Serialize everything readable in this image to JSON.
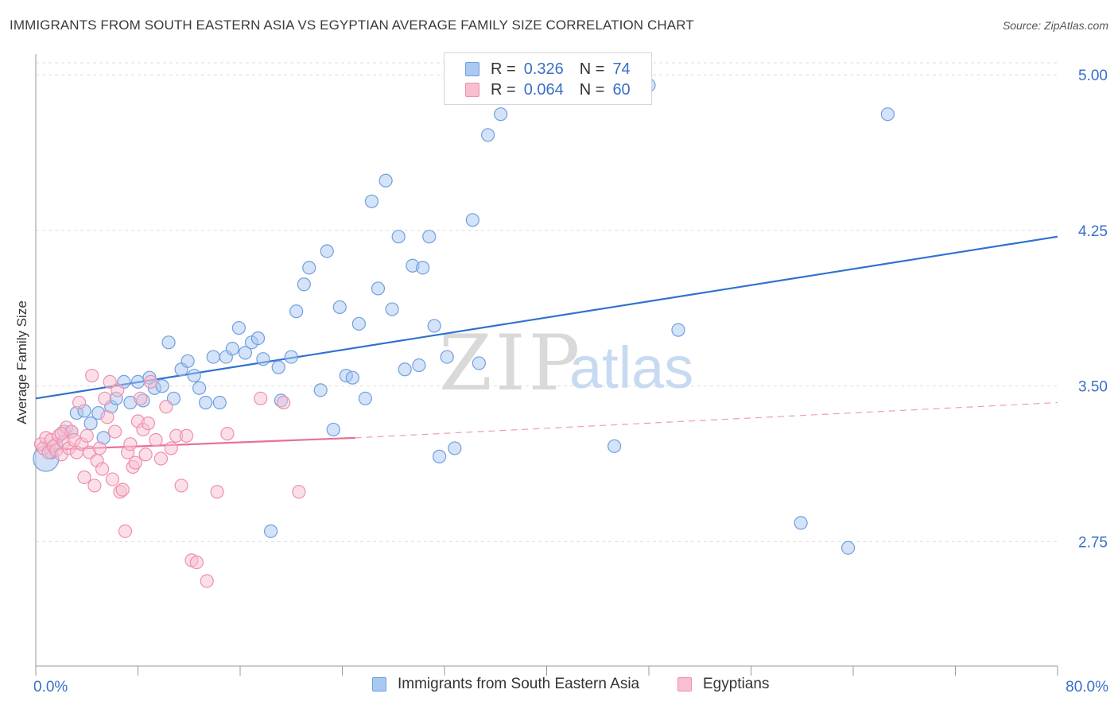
{
  "header": {
    "title": "IMMIGRANTS FROM SOUTH EASTERN ASIA VS EGYPTIAN AVERAGE FAMILY SIZE CORRELATION CHART",
    "source": "Source: ZipAtlas.com"
  },
  "legend": {
    "r_label": "R =",
    "n_label": "N =",
    "items": [
      {
        "r": "0.326",
        "n": "74",
        "fill": "#a9c8f2",
        "stroke": "#6f9fe0"
      },
      {
        "r": "0.064",
        "n": "60",
        "fill": "#f8bfd0",
        "stroke": "#ee8fae"
      }
    ]
  },
  "watermark": {
    "zip": "ZIP",
    "atlas": "atlas"
  },
  "colors": {
    "blue_line": "#2f72d0",
    "pink_line": "#e8709a",
    "tick_label": "#3a6fc8",
    "grid": "#dedede",
    "axis": "#999999"
  },
  "chart_data": {
    "type": "scatter",
    "title": "IMMIGRANTS FROM SOUTH EASTERN ASIA VS EGYPTIAN AVERAGE FAMILY SIZE CORRELATION CHART",
    "xlabel": "",
    "ylabel": "Average Family Size",
    "xlim": [
      0,
      80
    ],
    "ylim": [
      2.15,
      5.1
    ],
    "x_tick_labels": [
      "0.0%",
      "80.0%"
    ],
    "y_ticks": [
      2.75,
      3.5,
      4.25,
      5.0
    ],
    "y_tick_labels": [
      "2.75",
      "3.50",
      "4.25",
      "5.00"
    ],
    "grid": "horizontal dashed",
    "legend_position": "top-center",
    "series": [
      {
        "name": "Immigrants from South Eastern Asia",
        "color": "#a9c8f2",
        "stroke": "#6f9fe0",
        "trend": {
          "x": [
            0,
            80
          ],
          "y": [
            3.44,
            4.22
          ],
          "style": "solid",
          "color": "#2f72d0"
        },
        "points": [
          [
            0.8,
            3.15
          ],
          [
            1.2,
            3.18
          ],
          [
            1.6,
            3.22
          ],
          [
            2.2,
            3.28
          ],
          [
            2.8,
            3.28
          ],
          [
            3.2,
            3.37
          ],
          [
            3.8,
            3.38
          ],
          [
            4.3,
            3.32
          ],
          [
            4.9,
            3.37
          ],
          [
            5.3,
            3.25
          ],
          [
            5.9,
            3.4
          ],
          [
            6.3,
            3.44
          ],
          [
            6.9,
            3.52
          ],
          [
            7.4,
            3.42
          ],
          [
            8.0,
            3.52
          ],
          [
            8.4,
            3.43
          ],
          [
            8.9,
            3.54
          ],
          [
            9.3,
            3.49
          ],
          [
            9.9,
            3.5
          ],
          [
            10.4,
            3.71
          ],
          [
            10.8,
            3.44
          ],
          [
            11.4,
            3.58
          ],
          [
            11.9,
            3.62
          ],
          [
            12.4,
            3.55
          ],
          [
            12.8,
            3.49
          ],
          [
            13.3,
            3.42
          ],
          [
            13.9,
            3.64
          ],
          [
            14.4,
            3.42
          ],
          [
            14.9,
            3.64
          ],
          [
            15.4,
            3.68
          ],
          [
            15.9,
            3.78
          ],
          [
            16.4,
            3.66
          ],
          [
            16.9,
            3.71
          ],
          [
            17.4,
            3.73
          ],
          [
            17.8,
            3.63
          ],
          [
            18.4,
            2.8
          ],
          [
            19.0,
            3.59
          ],
          [
            19.2,
            3.43
          ],
          [
            20.0,
            3.64
          ],
          [
            20.4,
            3.86
          ],
          [
            21.0,
            3.99
          ],
          [
            21.4,
            4.07
          ],
          [
            22.3,
            3.48
          ],
          [
            22.8,
            4.15
          ],
          [
            23.3,
            3.29
          ],
          [
            23.8,
            3.88
          ],
          [
            24.3,
            3.55
          ],
          [
            24.8,
            3.54
          ],
          [
            25.3,
            3.8
          ],
          [
            25.8,
            3.44
          ],
          [
            26.3,
            4.39
          ],
          [
            26.8,
            3.97
          ],
          [
            27.4,
            4.49
          ],
          [
            27.9,
            3.87
          ],
          [
            28.4,
            4.22
          ],
          [
            28.9,
            3.58
          ],
          [
            29.5,
            4.08
          ],
          [
            30.0,
            3.6
          ],
          [
            30.3,
            4.07
          ],
          [
            30.8,
            4.22
          ],
          [
            31.2,
            3.79
          ],
          [
            31.6,
            3.16
          ],
          [
            32.2,
            3.64
          ],
          [
            32.8,
            3.2
          ],
          [
            34.2,
            4.3
          ],
          [
            34.7,
            3.61
          ],
          [
            35.4,
            4.71
          ],
          [
            36.4,
            4.81
          ],
          [
            45.3,
            3.21
          ],
          [
            50.3,
            3.77
          ],
          [
            59.9,
            2.84
          ],
          [
            63.6,
            2.72
          ],
          [
            66.7,
            4.81
          ],
          [
            48.0,
            4.95
          ]
        ]
      },
      {
        "name": "Egyptians",
        "color": "#f8bfd0",
        "stroke": "#ee8fae",
        "trend": {
          "x": [
            0,
            25
          ],
          "y": [
            3.19,
            3.25
          ],
          "x_dashed": [
            25,
            80
          ],
          "y_dashed": [
            3.25,
            3.42
          ],
          "style": "solid-then-dashed",
          "color": "#e8709a"
        },
        "points": [
          [
            0.4,
            3.22
          ],
          [
            0.6,
            3.2
          ],
          [
            0.8,
            3.25
          ],
          [
            1.0,
            3.18
          ],
          [
            1.2,
            3.24
          ],
          [
            1.4,
            3.21
          ],
          [
            1.6,
            3.19
          ],
          [
            1.8,
            3.26
          ],
          [
            2.0,
            3.17
          ],
          [
            2.2,
            3.23
          ],
          [
            2.4,
            3.3
          ],
          [
            2.6,
            3.2
          ],
          [
            2.8,
            3.28
          ],
          [
            3.0,
            3.24
          ],
          [
            3.2,
            3.18
          ],
          [
            3.4,
            3.42
          ],
          [
            3.6,
            3.22
          ],
          [
            3.8,
            3.06
          ],
          [
            4.0,
            3.26
          ],
          [
            4.2,
            3.18
          ],
          [
            4.4,
            3.55
          ],
          [
            4.6,
            3.02
          ],
          [
            4.8,
            3.14
          ],
          [
            5.0,
            3.2
          ],
          [
            5.2,
            3.1
          ],
          [
            5.4,
            3.44
          ],
          [
            5.6,
            3.35
          ],
          [
            5.8,
            3.52
          ],
          [
            6.0,
            3.05
          ],
          [
            6.2,
            3.28
          ],
          [
            6.4,
            3.48
          ],
          [
            6.6,
            2.99
          ],
          [
            6.8,
            3.0
          ],
          [
            7.0,
            2.8
          ],
          [
            7.2,
            3.18
          ],
          [
            7.4,
            3.22
          ],
          [
            7.6,
            3.11
          ],
          [
            7.8,
            3.13
          ],
          [
            8.0,
            3.33
          ],
          [
            8.2,
            3.44
          ],
          [
            8.4,
            3.29
          ],
          [
            8.6,
            3.17
          ],
          [
            8.8,
            3.32
          ],
          [
            9.0,
            3.52
          ],
          [
            9.4,
            3.24
          ],
          [
            9.8,
            3.15
          ],
          [
            10.2,
            3.4
          ],
          [
            10.6,
            3.2
          ],
          [
            11.0,
            3.26
          ],
          [
            11.4,
            3.02
          ],
          [
            11.8,
            3.26
          ],
          [
            12.2,
            2.66
          ],
          [
            12.6,
            2.65
          ],
          [
            13.4,
            2.56
          ],
          [
            14.2,
            2.99
          ],
          [
            15.0,
            3.27
          ],
          [
            17.6,
            3.44
          ],
          [
            19.4,
            3.42
          ],
          [
            20.6,
            2.99
          ],
          [
            2.0,
            3.27
          ]
        ]
      }
    ]
  },
  "bottom_legend": {
    "items": [
      {
        "label": "Immigrants from South Eastern Asia"
      },
      {
        "label": "Egyptians"
      }
    ]
  }
}
